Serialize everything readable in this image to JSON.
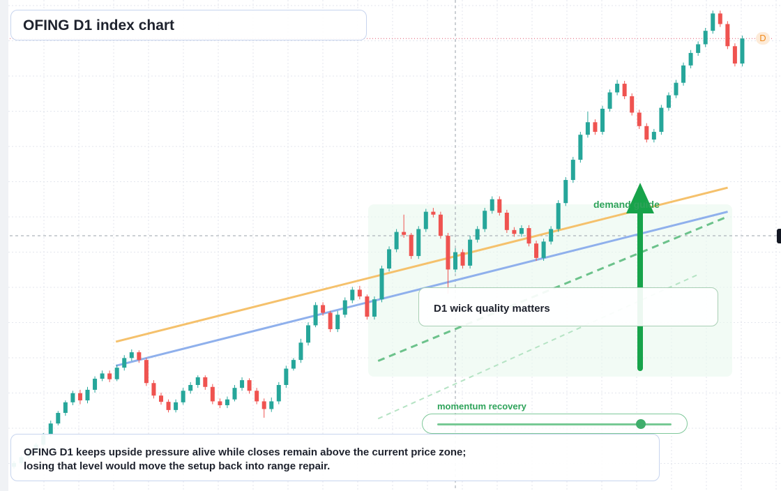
{
  "chart_data": {
    "type": "candlestick",
    "title": "OFING D1 index chart",
    "timeframe": "D1",
    "ylim": [
      0,
      100
    ],
    "current_price": 92,
    "last_price_badge": "D",
    "grid": true,
    "candles": [
      [
        3.0,
        3.8,
        2.6,
        4.2
      ],
      [
        3.8,
        5.0,
        3.4,
        5.4
      ],
      [
        5.0,
        6.2,
        4.6,
        6.6
      ],
      [
        6.2,
        7.6,
        5.8,
        8.0
      ],
      [
        7.6,
        9.6,
        7.2,
        10.0
      ],
      [
        9.6,
        12.0,
        9.2,
        12.6
      ],
      [
        12.0,
        14.2,
        11.6,
        14.6
      ],
      [
        14.2,
        16.4,
        13.6,
        16.8
      ],
      [
        16.4,
        18.3,
        15.8,
        18.8
      ],
      [
        18.3,
        16.8,
        16.0,
        19.0
      ],
      [
        16.8,
        19.0,
        16.2,
        19.6
      ],
      [
        19.0,
        21.3,
        18.4,
        21.8
      ],
      [
        21.3,
        22.4,
        20.8,
        23.0
      ],
      [
        22.4,
        21.2,
        20.6,
        23.0
      ],
      [
        21.2,
        23.6,
        20.8,
        24.2
      ],
      [
        23.6,
        25.6,
        23.0,
        26.2
      ],
      [
        25.6,
        26.8,
        25.0,
        27.4
      ],
      [
        26.8,
        25.2,
        24.6,
        27.2
      ],
      [
        25.2,
        20.4,
        19.8,
        25.6
      ],
      [
        20.4,
        17.8,
        17.2,
        21.0
      ],
      [
        17.8,
        16.5,
        15.9,
        18.4
      ],
      [
        16.5,
        14.8,
        14.3,
        17.0
      ],
      [
        14.8,
        16.4,
        14.3,
        17.0
      ],
      [
        16.4,
        18.8,
        15.9,
        19.4
      ],
      [
        18.8,
        20.0,
        18.2,
        20.6
      ],
      [
        20.0,
        21.6,
        19.4,
        22.0
      ],
      [
        21.6,
        19.6,
        19.0,
        22.0
      ],
      [
        19.6,
        16.6,
        16.0,
        20.2
      ],
      [
        16.6,
        15.8,
        15.2,
        17.2
      ],
      [
        15.8,
        17.0,
        15.2,
        17.6
      ],
      [
        17.0,
        19.4,
        16.6,
        20.0
      ],
      [
        19.4,
        21.0,
        18.8,
        21.6
      ],
      [
        21.0,
        18.8,
        18.2,
        21.4
      ],
      [
        18.8,
        16.6,
        16.0,
        19.4
      ],
      [
        16.6,
        15.0,
        13.2,
        17.2
      ],
      [
        15.0,
        16.6,
        14.4,
        17.4
      ],
      [
        16.6,
        20.0,
        16.0,
        20.6
      ],
      [
        20.0,
        23.4,
        19.4,
        24.0
      ],
      [
        23.4,
        25.2,
        23.0,
        25.6
      ],
      [
        25.2,
        28.8,
        24.6,
        29.6
      ],
      [
        28.8,
        32.4,
        28.2,
        33.0
      ],
      [
        32.4,
        36.6,
        32.0,
        37.2
      ],
      [
        36.6,
        35.0,
        34.4,
        37.2
      ],
      [
        35.0,
        31.6,
        31.0,
        35.4
      ],
      [
        31.6,
        34.6,
        31.0,
        35.4
      ],
      [
        34.6,
        37.6,
        34.0,
        38.2
      ],
      [
        37.6,
        39.8,
        37.0,
        40.4
      ],
      [
        39.8,
        38.4,
        37.8,
        40.6
      ],
      [
        38.4,
        34.2,
        33.6,
        38.8
      ],
      [
        34.2,
        37.8,
        33.6,
        38.4
      ],
      [
        37.8,
        44.2,
        37.2,
        44.8
      ],
      [
        44.2,
        48.2,
        43.6,
        48.8
      ],
      [
        48.2,
        51.8,
        47.6,
        52.4
      ],
      [
        51.8,
        51.2,
        50.6,
        55.4
      ],
      [
        51.2,
        46.8,
        46.2,
        51.6
      ],
      [
        46.8,
        52.4,
        46.2,
        53.0
      ],
      [
        52.4,
        56.0,
        51.8,
        56.6
      ],
      [
        56.0,
        55.4,
        54.8,
        56.8
      ],
      [
        55.4,
        51.0,
        50.4,
        56.0
      ],
      [
        51.0,
        44.0,
        39.0,
        51.6
      ],
      [
        44.0,
        47.6,
        43.4,
        48.4
      ],
      [
        47.6,
        44.8,
        44.2,
        48.2
      ],
      [
        44.8,
        50.2,
        44.2,
        51.0
      ],
      [
        50.2,
        52.4,
        49.6,
        53.0
      ],
      [
        52.4,
        56.2,
        51.8,
        56.8
      ],
      [
        56.2,
        58.6,
        55.6,
        59.2
      ],
      [
        58.6,
        55.8,
        55.2,
        59.2
      ],
      [
        55.8,
        52.2,
        51.6,
        56.4
      ],
      [
        52.2,
        51.4,
        50.8,
        52.8
      ],
      [
        51.4,
        52.6,
        50.8,
        53.2
      ],
      [
        52.6,
        49.4,
        48.8,
        53.2
      ],
      [
        49.4,
        46.4,
        45.8,
        50.0
      ],
      [
        46.4,
        49.8,
        45.8,
        50.4
      ],
      [
        49.8,
        52.4,
        49.2,
        53.0
      ],
      [
        52.4,
        57.8,
        51.8,
        58.4
      ],
      [
        57.8,
        62.6,
        57.2,
        63.2
      ],
      [
        62.6,
        66.8,
        62.0,
        67.4
      ],
      [
        66.8,
        72.0,
        66.2,
        72.6
      ],
      [
        72.0,
        74.6,
        71.4,
        76.8
      ],
      [
        74.6,
        72.6,
        72.0,
        75.2
      ],
      [
        72.6,
        77.4,
        72.0,
        78.0
      ],
      [
        77.4,
        80.8,
        76.8,
        81.4
      ],
      [
        80.8,
        82.6,
        80.2,
        83.4
      ],
      [
        82.6,
        80.0,
        79.4,
        83.2
      ],
      [
        80.0,
        76.6,
        76.0,
        80.6
      ],
      [
        76.6,
        73.8,
        73.2,
        77.2
      ],
      [
        73.8,
        71.0,
        70.4,
        74.4
      ],
      [
        71.0,
        72.6,
        70.4,
        73.2
      ],
      [
        72.6,
        77.6,
        72.0,
        78.2
      ],
      [
        77.6,
        80.2,
        77.0,
        80.8
      ],
      [
        80.2,
        82.8,
        79.6,
        83.4
      ],
      [
        82.8,
        86.4,
        82.2,
        87.0
      ],
      [
        86.4,
        89.0,
        85.8,
        89.6
      ],
      [
        89.0,
        90.8,
        88.4,
        91.4
      ],
      [
        90.8,
        93.6,
        90.2,
        94.2
      ],
      [
        93.6,
        97.2,
        93.0,
        97.8
      ],
      [
        97.2,
        95.0,
        94.4,
        97.8
      ],
      [
        95.0,
        90.4,
        89.8,
        95.6
      ],
      [
        90.4,
        86.8,
        86.2,
        91.0
      ],
      [
        86.8,
        92.0,
        86.2,
        92.6
      ]
    ],
    "lines": [
      {
        "name": "upper-channel",
        "color": "#f5c16c",
        "style": "solid"
      },
      {
        "name": "lower-channel",
        "color": "#8fb0ec",
        "style": "solid"
      },
      {
        "name": "momentum-trend",
        "color": "#6cc28b",
        "style": "dashed"
      },
      {
        "name": "momentum-trend-faint",
        "color": "#b5e3c4",
        "style": "dashed"
      }
    ],
    "annotations": {
      "demand": "demand guide",
      "note": "D1 wick quality matters",
      "momentum": "momentum recovery"
    },
    "momentum_level": 0.87
  },
  "ui": {
    "title": "OFING D1 index chart",
    "summary_line_1": "OFING D1 keeps upside pressure alive while closes remain above the current price zone;",
    "summary_line_2": "losing that level would move the setup back into range repair."
  },
  "colors": {
    "up": "#26a69a",
    "down": "#ef5350",
    "arrow": "#17a34a",
    "grid": "#e3e6ee",
    "price_line": "#e0566e"
  }
}
